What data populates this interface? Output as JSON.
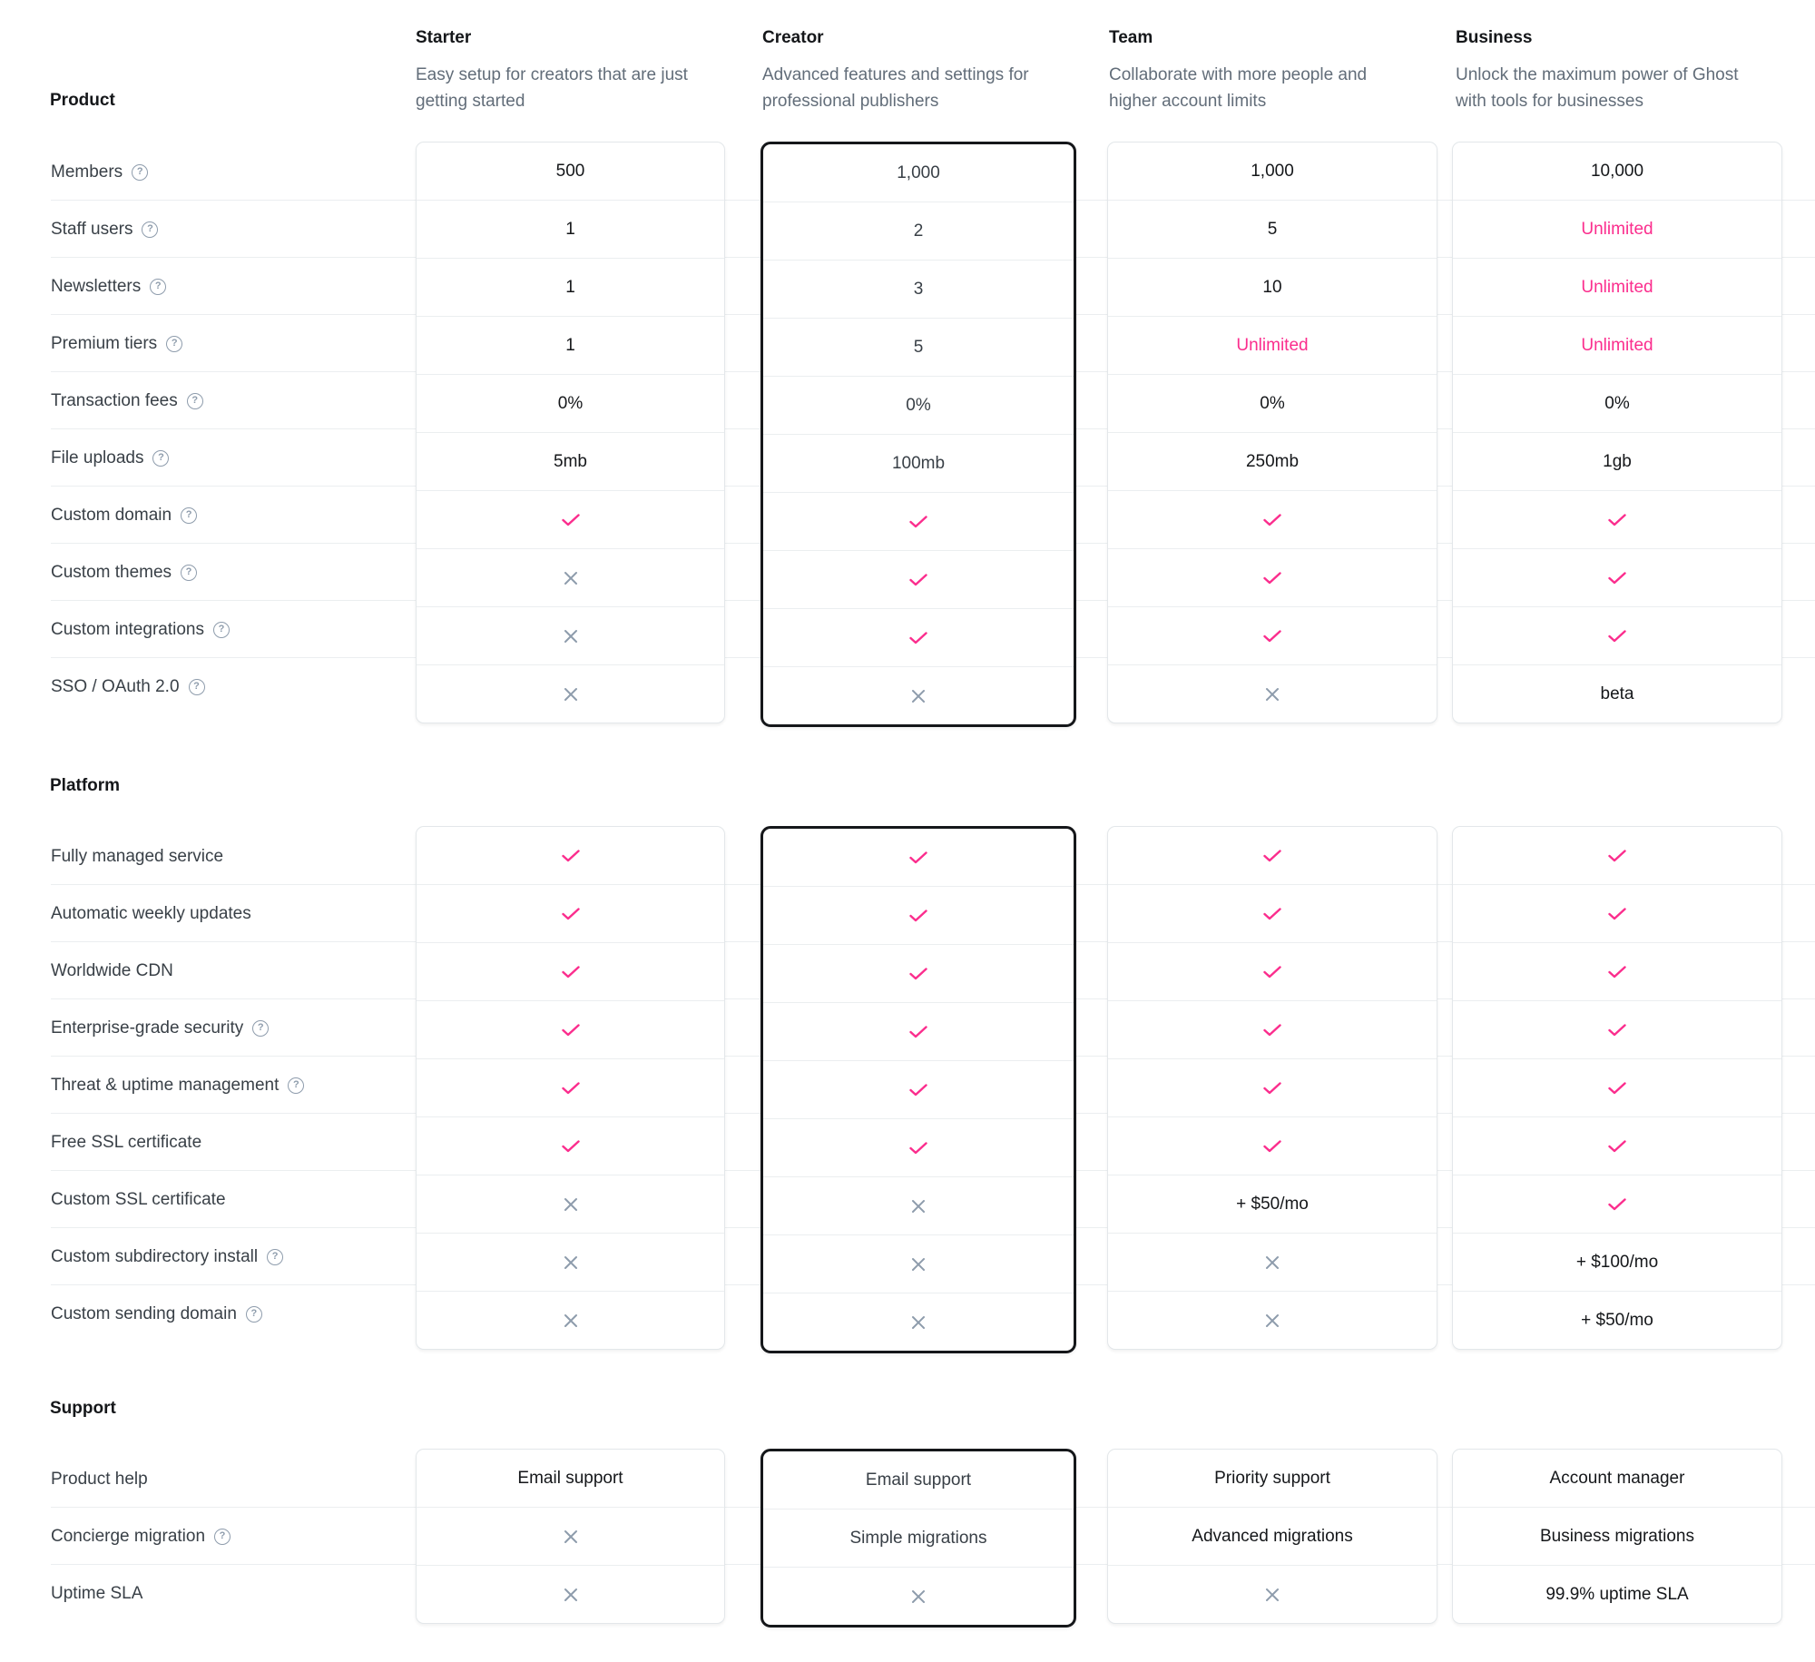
{
  "plans": [
    {
      "name": "Starter",
      "desc1": "Easy setup for creators that are just",
      "desc2": "getting started"
    },
    {
      "name": "Creator",
      "desc1": "Advanced features and settings for",
      "desc2": "professional publishers"
    },
    {
      "name": "Team",
      "desc1": "Collaborate with more people and",
      "desc2": "higher account limits"
    },
    {
      "name": "Business",
      "desc1": "Unlock the maximum power of Ghost",
      "desc2": "with tools for businesses"
    }
  ],
  "sections": [
    {
      "title": "Product",
      "features": [
        {
          "label": "Members",
          "help": true
        },
        {
          "label": "Staff users",
          "help": true
        },
        {
          "label": "Newsletters",
          "help": true
        },
        {
          "label": "Premium tiers",
          "help": true
        },
        {
          "label": "Transaction fees",
          "help": true
        },
        {
          "label": "File uploads",
          "help": true
        },
        {
          "label": "Custom domain",
          "help": true
        },
        {
          "label": "Custom themes",
          "help": true
        },
        {
          "label": "Custom integrations",
          "help": true
        },
        {
          "label": "SSO / OAuth 2.0",
          "help": true
        }
      ],
      "values": [
        [
          "500",
          "1",
          "1",
          "1",
          "0%",
          "5mb",
          "check",
          "cross",
          "cross",
          "cross"
        ],
        [
          "1,000",
          "2",
          "3",
          "5",
          "0%",
          "100mb",
          "check",
          "check",
          "check",
          "cross"
        ],
        [
          "1,000",
          "5",
          "10",
          "Unlimited",
          "0%",
          "250mb",
          "check",
          "check",
          "check",
          "cross"
        ],
        [
          "10,000",
          "Unlimited",
          "Unlimited",
          "Unlimited",
          "0%",
          "1gb",
          "check",
          "check",
          "check",
          "beta"
        ]
      ]
    },
    {
      "title": "Platform",
      "features": [
        {
          "label": "Fully managed service",
          "help": false
        },
        {
          "label": "Automatic weekly updates",
          "help": false
        },
        {
          "label": "Worldwide CDN",
          "help": false
        },
        {
          "label": "Enterprise-grade security",
          "help": true
        },
        {
          "label": "Threat & uptime management",
          "help": true
        },
        {
          "label": "Free SSL certificate",
          "help": false
        },
        {
          "label": "Custom SSL certificate",
          "help": false
        },
        {
          "label": "Custom subdirectory install",
          "help": true
        },
        {
          "label": "Custom sending domain",
          "help": true
        }
      ],
      "values": [
        [
          "check",
          "check",
          "check",
          "check",
          "check",
          "check",
          "cross",
          "cross",
          "cross"
        ],
        [
          "check",
          "check",
          "check",
          "check",
          "check",
          "check",
          "cross",
          "cross",
          "cross"
        ],
        [
          "check",
          "check",
          "check",
          "check",
          "check",
          "check",
          "+ $50/mo",
          "cross",
          "cross"
        ],
        [
          "check",
          "check",
          "check",
          "check",
          "check",
          "check",
          "check",
          "+ $100/mo",
          "+ $50/mo"
        ]
      ]
    },
    {
      "title": "Support",
      "features": [
        {
          "label": "Product help",
          "help": false
        },
        {
          "label": "Concierge migration",
          "help": true
        },
        {
          "label": "Uptime SLA",
          "help": false
        }
      ],
      "values": [
        [
          "Email support",
          "cross",
          "cross"
        ],
        [
          "Email support",
          "Simple migrations",
          "cross"
        ],
        [
          "Priority support",
          "Advanced migrations",
          "cross"
        ],
        [
          "Account manager",
          "Business migrations",
          "99.9% uptime SLA"
        ]
      ]
    }
  ],
  "help_icon_glyph": "?",
  "colors": {
    "accent": "#fb2d8d",
    "muted_icon": "#8e9cac",
    "featured_border": "#15171a"
  }
}
